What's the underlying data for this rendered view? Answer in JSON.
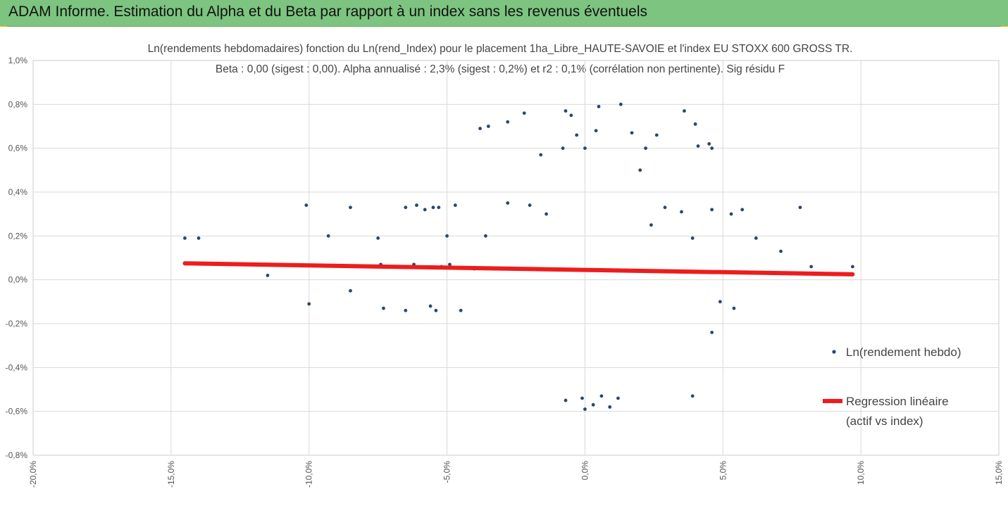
{
  "header": {
    "title": "ADAM Informe. Estimation du Alpha et du Beta par rapport à un index sans les revenus éventuels",
    "background": "#7cc47f"
  },
  "chart_data": {
    "type": "scatter",
    "title_line1": "Ln(rendements hebdomadaires) fonction du Ln(rend_Index)  pour le placement 1ha_Libre_HAUTE-SAVOIE et l'index EU STOXX 600 GROSS TR.",
    "title_line2": "Beta : 0,00 (sigest : 0,00).  Alpha annualisé : 2,3% (sigest : 0,2%) et r2 : 0,1% (corrélation non pertinente). Sig résidu F",
    "xlim": [
      -20,
      15
    ],
    "ylim": [
      -0.8,
      1.0
    ],
    "x_ticks": [
      "-20,0%",
      "-15,0%",
      "-10,0%",
      "-5,0%",
      "0,0%",
      "5,0%",
      "10,0%",
      "15,0%"
    ],
    "y_ticks": [
      "1,0%",
      "0,8%",
      "0,6%",
      "0,4%",
      "0,2%",
      "0,0%",
      "-0,2%",
      "-0,4%",
      "-0,6%",
      "-0,8%"
    ],
    "grid": true,
    "legend_position": "right",
    "series": [
      {
        "name": "Ln(rendement hebdo)",
        "kind": "points",
        "color": "#2b4670",
        "points": [
          [
            -14.5,
            0.19
          ],
          [
            -14.0,
            0.19
          ],
          [
            -11.5,
            0.02
          ],
          [
            -10.1,
            0.34
          ],
          [
            -10.0,
            -0.11
          ],
          [
            -9.3,
            0.2
          ],
          [
            -8.5,
            0.33
          ],
          [
            -8.5,
            -0.05
          ],
          [
            -7.5,
            0.19
          ],
          [
            -7.3,
            -0.13
          ],
          [
            -7.4,
            0.07
          ],
          [
            -6.5,
            0.33
          ],
          [
            -6.5,
            -0.14
          ],
          [
            -6.1,
            0.34
          ],
          [
            -5.8,
            0.32
          ],
          [
            -5.5,
            0.33
          ],
          [
            -5.3,
            0.33
          ],
          [
            -5.6,
            -0.12
          ],
          [
            -5.4,
            -0.14
          ],
          [
            -5.0,
            0.2
          ],
          [
            -4.9,
            0.07
          ],
          [
            -4.7,
            0.34
          ],
          [
            -4.5,
            -0.14
          ],
          [
            -3.8,
            0.69
          ],
          [
            -3.5,
            0.7
          ],
          [
            -2.8,
            0.72
          ],
          [
            -2.2,
            0.76
          ],
          [
            -1.6,
            0.57
          ],
          [
            -0.7,
            0.77
          ],
          [
            -0.5,
            0.75
          ],
          [
            -0.3,
            0.66
          ],
          [
            0.5,
            0.79
          ],
          [
            0.4,
            0.68
          ],
          [
            1.3,
            0.8
          ],
          [
            1.7,
            0.67
          ],
          [
            2.2,
            0.6
          ],
          [
            2.6,
            0.66
          ],
          [
            2.0,
            0.5
          ],
          [
            3.6,
            0.77
          ],
          [
            4.0,
            0.71
          ],
          [
            4.1,
            0.61
          ],
          [
            4.5,
            0.62
          ],
          [
            4.6,
            0.6
          ],
          [
            -0.8,
            0.6
          ],
          [
            0.0,
            0.6
          ],
          [
            4.6,
            0.32
          ],
          [
            5.3,
            0.3
          ],
          [
            5.7,
            0.32
          ],
          [
            6.2,
            0.19
          ],
          [
            7.1,
            0.13
          ],
          [
            7.8,
            0.33
          ],
          [
            8.2,
            0.06
          ],
          [
            9.7,
            0.06
          ],
          [
            4.6,
            -0.24
          ],
          [
            5.4,
            -0.13
          ],
          [
            4.9,
            -0.1
          ],
          [
            3.9,
            -0.53
          ],
          [
            -0.7,
            -0.55
          ],
          [
            -0.1,
            -0.54
          ],
          [
            0.3,
            -0.57
          ],
          [
            0.6,
            -0.53
          ],
          [
            1.2,
            -0.54
          ],
          [
            0.9,
            -0.58
          ],
          [
            0.0,
            -0.59
          ],
          [
            -6.2,
            0.07
          ],
          [
            -5.2,
            0.06
          ],
          [
            -4.0,
            0.05
          ],
          [
            3.5,
            0.31
          ],
          [
            2.9,
            0.33
          ],
          [
            3.9,
            0.19
          ],
          [
            -3.6,
            0.2
          ],
          [
            -2.8,
            0.35
          ],
          [
            -2.0,
            0.34
          ],
          [
            2.4,
            0.25
          ],
          [
            -1.4,
            0.3
          ]
        ]
      },
      {
        "name": "Regression linéaire\n(actif vs index)",
        "kind": "line",
        "color": "#ee1c1c",
        "points": [
          [
            -14.5,
            0.075
          ],
          [
            9.7,
            0.025
          ]
        ]
      }
    ]
  }
}
